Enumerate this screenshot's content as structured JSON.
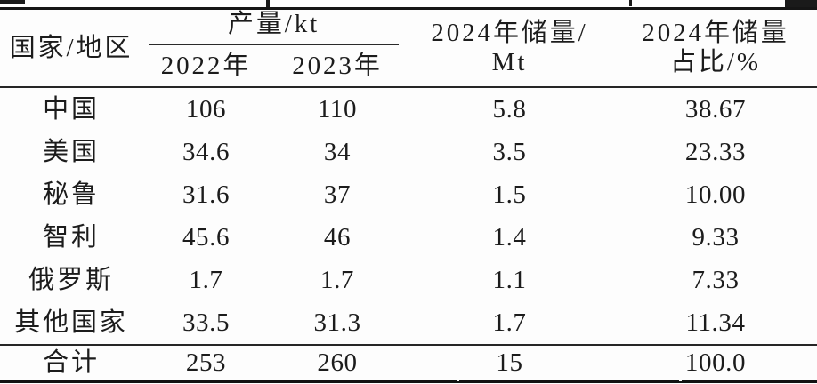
{
  "table": {
    "header": {
      "country": "国家/地区",
      "production_group": "产量/kt",
      "year_2022": "2022年",
      "year_2023": "2023年",
      "reserves_line1": "2024年储量/",
      "reserves_line2": "Mt",
      "share_line1": "2024年储量",
      "share_line2": "占比/%"
    },
    "rows": [
      {
        "country": "中国",
        "y2022": "106",
        "y2023": "110",
        "reserve": "5.8",
        "share": "38.67"
      },
      {
        "country": "美国",
        "y2022": "34.6",
        "y2023": "34",
        "reserve": "3.5",
        "share": "23.33"
      },
      {
        "country": "秘鲁",
        "y2022": "31.6",
        "y2023": "37",
        "reserve": "1.5",
        "share": "10.00"
      },
      {
        "country": "智利",
        "y2022": "45.6",
        "y2023": "46",
        "reserve": "1.4",
        "share": "9.33"
      },
      {
        "country": "俄罗斯",
        "y2022": "1.7",
        "y2023": "1.7",
        "reserve": "1.1",
        "share": "7.33"
      },
      {
        "country": "其他国家",
        "y2022": "33.5",
        "y2023": "31.3",
        "reserve": "1.7",
        "share": "11.34"
      }
    ],
    "total": {
      "country": "合计",
      "y2022": "253",
      "y2023": "260",
      "reserve": "15",
      "share": "100.0"
    }
  },
  "chart_data": {
    "type": "table",
    "title": "",
    "columns": [
      "国家/地区",
      "产量/kt 2022年",
      "产量/kt 2023年",
      "2024年储量/Mt",
      "2024年储量占比/%"
    ],
    "rows": [
      [
        "中国",
        106,
        110,
        5.8,
        38.67
      ],
      [
        "美国",
        34.6,
        34,
        3.5,
        23.33
      ],
      [
        "秘鲁",
        31.6,
        37,
        1.5,
        10.0
      ],
      [
        "智利",
        45.6,
        46,
        1.4,
        9.33
      ],
      [
        "俄罗斯",
        1.7,
        1.7,
        1.1,
        7.33
      ],
      [
        "其他国家",
        33.5,
        31.3,
        1.7,
        11.34
      ],
      [
        "合计",
        253,
        260,
        15,
        100.0
      ]
    ]
  },
  "colors": {
    "text": "#1c1c1c",
    "rule_thick": "#151515",
    "rule_thin": "#262626",
    "background": "#fdfdfd"
  }
}
